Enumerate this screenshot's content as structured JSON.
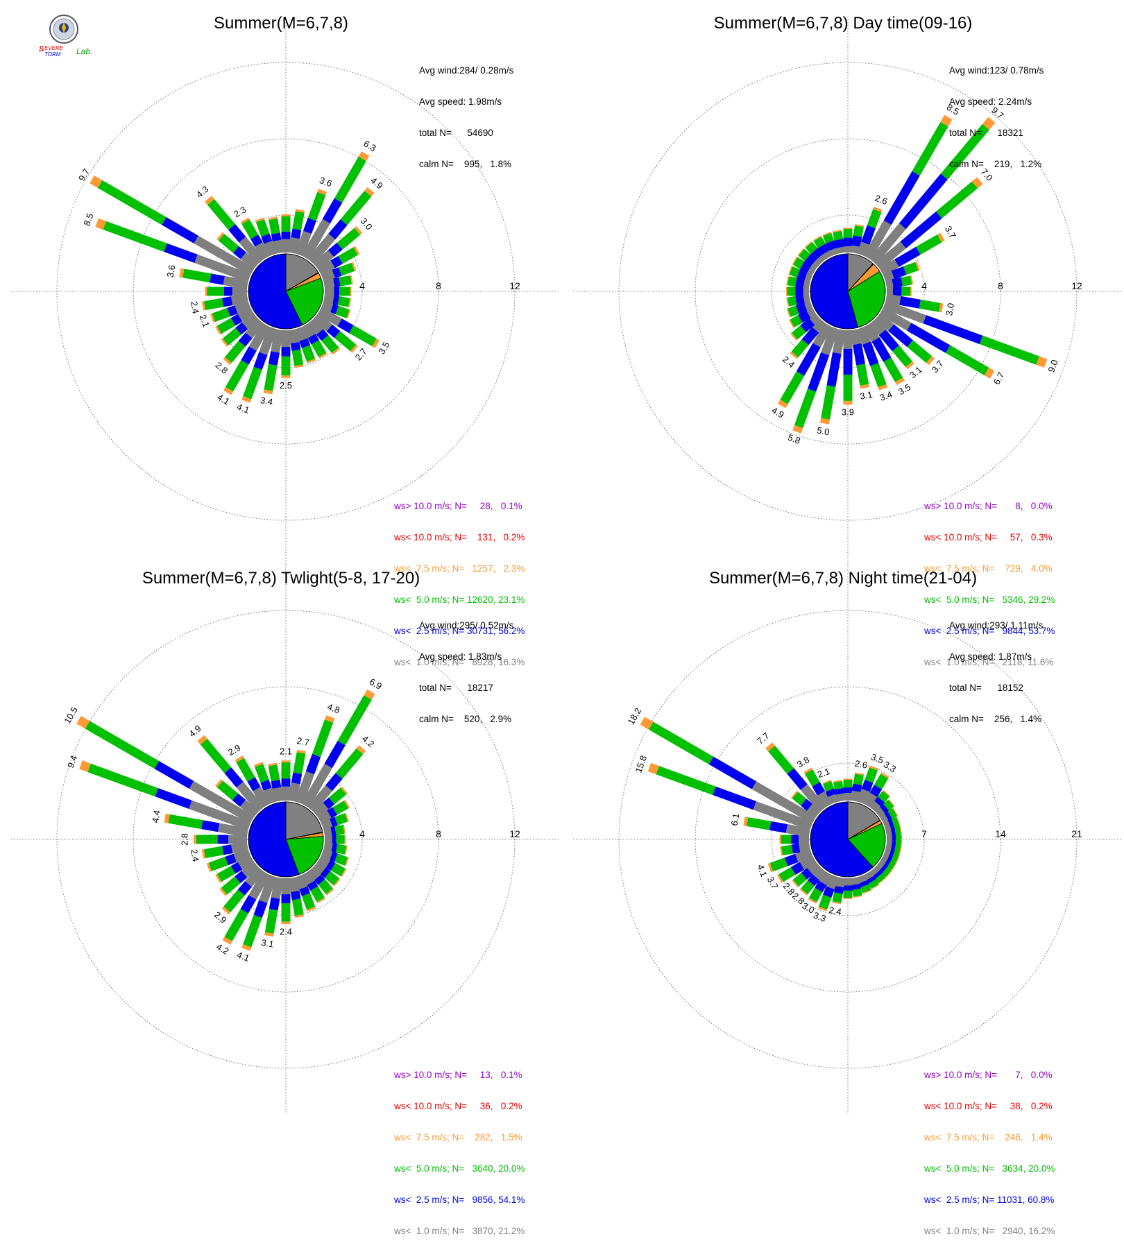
{
  "logo": {
    "text_line1": "SEVERE",
    "text_line2": "STORM",
    "text_line3": "Lab."
  },
  "colors": {
    "gray": "#808080",
    "blue": "#0000ee",
    "green": "#00c000",
    "orange": "#ff9933",
    "red": "#ee0000",
    "purple": "#9900cc"
  },
  "chart_data": [
    {
      "type": "windrose",
      "title": "Summer(M=6,7,8)",
      "ring_labels": [
        "4",
        "8",
        "12"
      ],
      "rmax": 12,
      "stats": {
        "avg_wind": "Avg wind:284/ 0.28m/s",
        "avg_speed": "Avg speed: 1.98m/s",
        "total": "total N=      54690",
        "calm": "calm N=    995,   1.8%"
      },
      "legend": [
        {
          "text": "ws> 10.0 m/s; N=     28,   0.1%",
          "color": "#9900cc"
        },
        {
          "text": "ws< 10.0 m/s; N=    131,   0.2%",
          "color": "#ee0000"
        },
        {
          "text": "ws<  7.5 m/s; N=   1257,   2.3%",
          "color": "#ff9933"
        },
        {
          "text": "ws<  5.0 m/s; N= 12620, 23.1%",
          "color": "#00c000"
        },
        {
          "text": "ws<  2.5 m/s; N= 30731, 56.2%",
          "color": "#0000ee"
        },
        {
          "text": "ws<  1.0 m/s; N=   8928, 16.3%",
          "color": "#808080"
        }
      ],
      "direction_labels": [
        {
          "dir": 20,
          "label": "3.6"
        },
        {
          "dir": 30,
          "label": "6.3"
        },
        {
          "dir": 40,
          "label": "4.9"
        },
        {
          "dir": 50,
          "label": "3.0"
        },
        {
          "dir": 120,
          "label": "3.5"
        },
        {
          "dir": 130,
          "label": "2.7"
        },
        {
          "dir": 180,
          "label": "2.5"
        },
        {
          "dir": 190,
          "label": "3.4"
        },
        {
          "dir": 200,
          "label": "4.1"
        },
        {
          "dir": 210,
          "label": "4.1"
        },
        {
          "dir": 220,
          "label": "2.8"
        },
        {
          "dir": 250,
          "label": "2.1"
        },
        {
          "dir": 260,
          "label": "2.4"
        },
        {
          "dir": 280,
          "label": "3.6"
        },
        {
          "dir": 290,
          "label": "8.5"
        },
        {
          "dir": 300,
          "label": "9.7"
        },
        {
          "dir": 320,
          "label": "4.3"
        },
        {
          "dir": 330,
          "label": "2.3"
        }
      ],
      "totals": [
        2.0,
        2.3,
        3.6,
        6.3,
        4.9,
        3.0,
        2.3,
        1.8,
        1.5,
        1.4,
        1.4,
        1.5,
        3.5,
        2.7,
        2.1,
        1.9,
        1.9,
        2.0,
        2.5,
        3.4,
        4.1,
        4.1,
        2.8,
        2.2,
        2.1,
        2.1,
        2.4,
        2.2,
        3.6,
        8.5,
        9.7,
        2.5,
        4.3,
        2.3,
        2.0,
        1.9
      ],
      "fractions": [
        0.35,
        0.55,
        0.95,
        1.0,
        1.0,
        1.0
      ],
      "pie": [
        {
          "label": "ws< 1.0 m/s",
          "value": 16.3,
          "color": "#808080"
        },
        {
          "label": "ws> 10.0 m/s",
          "value": 0.1,
          "color": "#9900cc"
        },
        {
          "label": "ws< 10.0 m/s",
          "value": 0.2,
          "color": "#ee0000"
        },
        {
          "label": "ws< 7.5 m/s",
          "value": 2.3,
          "color": "#ff9933"
        },
        {
          "label": "ws< 5.0 m/s",
          "value": 23.1,
          "color": "#00c000"
        },
        {
          "label": "ws< 2.5 m/s",
          "value": 56.2,
          "color": "#0000ee"
        }
      ]
    },
    {
      "type": "windrose",
      "title": "Summer(M=6,7,8) Day time(09-16)",
      "ring_labels": [
        "4",
        "8",
        "12"
      ],
      "rmax": 12,
      "stats": {
        "avg_wind": "Avg wind:123/ 0.78m/s",
        "avg_speed": "Avg speed: 2.24m/s",
        "total": "total N=      18321",
        "calm": "calm N=    219,   1.2%"
      },
      "legend": [
        {
          "text": "ws> 10.0 m/s; N=       8,   0.0%",
          "color": "#9900cc"
        },
        {
          "text": "ws< 10.0 m/s; N=     57,   0.3%",
          "color": "#ee0000"
        },
        {
          "text": "ws<  7.5 m/s; N=    729,   4.0%",
          "color": "#ff9933"
        },
        {
          "text": "ws<  5.0 m/s; N=   5346, 29.2%",
          "color": "#00c000"
        },
        {
          "text": "ws<  2.5 m/s; N=   9844, 53.7%",
          "color": "#0000ee"
        },
        {
          "text": "ws<  1.0 m/s; N=   2118, 11.6%",
          "color": "#808080"
        }
      ],
      "direction_labels": [
        {
          "dir": 20,
          "label": "2.6"
        },
        {
          "dir": 30,
          "label": "8.5"
        },
        {
          "dir": 40,
          "label": "9.7"
        },
        {
          "dir": 50,
          "label": "7.0"
        },
        {
          "dir": 60,
          "label": "3.7"
        },
        {
          "dir": 100,
          "label": "3.0"
        },
        {
          "dir": 110,
          "label": "9.0"
        },
        {
          "dir": 120,
          "label": "6.7"
        },
        {
          "dir": 130,
          "label": "3.7"
        },
        {
          "dir": 140,
          "label": "3.1"
        },
        {
          "dir": 150,
          "label": "3.5"
        },
        {
          "dir": 160,
          "label": "3.4"
        },
        {
          "dir": 170,
          "label": "3.1"
        },
        {
          "dir": 180,
          "label": "3.9"
        },
        {
          "dir": 190,
          "label": "5.0"
        },
        {
          "dir": 200,
          "label": "5.8"
        },
        {
          "dir": 210,
          "label": "4.9"
        },
        {
          "dir": 220,
          "label": "2.4"
        }
      ],
      "totals": [
        1.3,
        1.5,
        2.6,
        8.5,
        9.7,
        7.0,
        3.7,
        1.9,
        1.4,
        1.3,
        3.0,
        9.0,
        6.7,
        3.7,
        3.1,
        3.5,
        3.4,
        3.1,
        3.9,
        5.0,
        5.8,
        4.9,
        2.4,
        1.7,
        1.4,
        1.3,
        1.2,
        1.2,
        1.2,
        1.2,
        1.2,
        1.2,
        1.2,
        1.2,
        1.2,
        1.2
      ],
      "fractions": [
        0.25,
        0.6,
        0.95,
        1.0,
        1.0,
        1.0
      ],
      "pie": [
        {
          "label": "ws< 1.0 m/s",
          "value": 11.6,
          "color": "#808080"
        },
        {
          "label": "ws> 10.0 m/s",
          "value": 0.0,
          "color": "#9900cc"
        },
        {
          "label": "ws< 10.0 m/s",
          "value": 0.3,
          "color": "#ee0000"
        },
        {
          "label": "ws< 7.5 m/s",
          "value": 4.0,
          "color": "#ff9933"
        },
        {
          "label": "ws< 5.0 m/s",
          "value": 29.2,
          "color": "#00c000"
        },
        {
          "label": "ws< 2.5 m/s",
          "value": 53.7,
          "color": "#0000ee"
        }
      ]
    },
    {
      "type": "windrose",
      "title": "Summer(M=6,7,8) Twlight(5-8, 17-20)",
      "ring_labels": [
        "4",
        "8",
        "12"
      ],
      "rmax": 12,
      "stats": {
        "avg_wind": "Avg wind:295/ 0.52m/s",
        "avg_speed": "Avg speed: 1.83m/s",
        "total": "total N=      18217",
        "calm": "calm N=    520,   2.9%"
      },
      "legend": [
        {
          "text": "ws> 10.0 m/s; N=     13,   0.1%",
          "color": "#9900cc"
        },
        {
          "text": "ws< 10.0 m/s; N=     36,   0.2%",
          "color": "#ee0000"
        },
        {
          "text": "ws<  7.5 m/s; N=    282,   1.5%",
          "color": "#ff9933"
        },
        {
          "text": "ws<  5.0 m/s; N=   3640, 20.0%",
          "color": "#00c000"
        },
        {
          "text": "ws<  2.5 m/s; N=   9856, 54.1%",
          "color": "#0000ee"
        },
        {
          "text": "ws<  1.0 m/s; N=   3870, 21.2%",
          "color": "#808080"
        }
      ],
      "direction_labels": [
        {
          "dir": 0,
          "label": "2.1"
        },
        {
          "dir": 10,
          "label": "2.7"
        },
        {
          "dir": 20,
          "label": "4.8"
        },
        {
          "dir": 30,
          "label": "6.9"
        },
        {
          "dir": 40,
          "label": "4.2"
        },
        {
          "dir": 180,
          "label": "2.4"
        },
        {
          "dir": 190,
          "label": "3.1"
        },
        {
          "dir": 200,
          "label": "4.1"
        },
        {
          "dir": 210,
          "label": "4.2"
        },
        {
          "dir": 220,
          "label": "2.9"
        },
        {
          "dir": 260,
          "label": "2.4"
        },
        {
          "dir": 270,
          "label": "2.8"
        },
        {
          "dir": 280,
          "label": "4.4"
        },
        {
          "dir": 290,
          "label": "9.4"
        },
        {
          "dir": 300,
          "label": "10.5"
        },
        {
          "dir": 320,
          "label": "4.9"
        },
        {
          "dir": 330,
          "label": "2.9"
        }
      ],
      "totals": [
        2.1,
        2.7,
        4.8,
        6.9,
        4.2,
        2.0,
        1.7,
        1.4,
        1.1,
        1.1,
        1.2,
        1.4,
        1.5,
        1.5,
        1.6,
        1.7,
        1.9,
        2.1,
        2.4,
        3.1,
        4.1,
        4.2,
        2.9,
        2.3,
        2.1,
        2.3,
        2.4,
        2.8,
        4.4,
        9.4,
        10.5,
        2.6,
        4.9,
        2.9,
        2.2,
        2.0
      ],
      "fractions": [
        0.35,
        0.55,
        0.95,
        1.0,
        1.0,
        1.0
      ],
      "pie": [
        {
          "label": "ws< 1.0 m/s",
          "value": 21.2,
          "color": "#808080"
        },
        {
          "label": "ws> 10.0 m/s",
          "value": 0.1,
          "color": "#9900cc"
        },
        {
          "label": "ws< 10.0 m/s",
          "value": 0.2,
          "color": "#ee0000"
        },
        {
          "label": "ws< 7.5 m/s",
          "value": 1.5,
          "color": "#ff9933"
        },
        {
          "label": "ws< 5.0 m/s",
          "value": 20.0,
          "color": "#00c000"
        },
        {
          "label": "ws< 2.5 m/s",
          "value": 54.1,
          "color": "#0000ee"
        }
      ]
    },
    {
      "type": "windrose",
      "title": "Summer(M=6,7,8) Night time(21-04)",
      "ring_labels": [
        "7",
        "14",
        "21"
      ],
      "rmax": 21,
      "stats": {
        "avg_wind": "Avg wind:293/ 1.11m/s",
        "avg_speed": "Avg speed: 1.87m/s",
        "total": "total N=      18152",
        "calm": "calm N=    256,   1.4%"
      },
      "legend": [
        {
          "text": "ws> 10.0 m/s; N=       7,   0.0%",
          "color": "#9900cc"
        },
        {
          "text": "ws< 10.0 m/s; N=     38,   0.2%",
          "color": "#ee0000"
        },
        {
          "text": "ws<  7.5 m/s; N=    246,   1.4%",
          "color": "#ff9933"
        },
        {
          "text": "ws<  5.0 m/s; N=   3634, 20.0%",
          "color": "#00c000"
        },
        {
          "text": "ws<  2.5 m/s; N= 11031, 60.8%",
          "color": "#0000ee"
        },
        {
          "text": "ws<  1.0 m/s; N=   2940, 16.2%",
          "color": "#808080"
        }
      ],
      "direction_labels": [
        {
          "dir": 10,
          "label": "2.6"
        },
        {
          "dir": 20,
          "label": "3.5"
        },
        {
          "dir": 30,
          "label": "3.3"
        },
        {
          "dir": 190,
          "label": "2.4"
        },
        {
          "dir": 200,
          "label": "3.3"
        },
        {
          "dir": 210,
          "label": "3.0"
        },
        {
          "dir": 220,
          "label": "2.8"
        },
        {
          "dir": 230,
          "label": "2.8"
        },
        {
          "dir": 240,
          "label": "3.7"
        },
        {
          "dir": 250,
          "label": "4.1"
        },
        {
          "dir": 280,
          "label": "6.1"
        },
        {
          "dir": 290,
          "label": "15.8"
        },
        {
          "dir": 300,
          "label": "18.2"
        },
        {
          "dir": 320,
          "label": "7.7"
        },
        {
          "dir": 330,
          "label": "3.8"
        },
        {
          "dir": 340,
          "label": "2.1"
        }
      ],
      "totals": [
        2.0,
        2.6,
        3.5,
        3.3,
        2.0,
        1.7,
        1.5,
        1.4,
        1.4,
        1.4,
        1.4,
        1.4,
        1.4,
        1.4,
        1.4,
        1.5,
        1.6,
        1.8,
        1.9,
        2.4,
        3.3,
        3.0,
        2.8,
        2.8,
        3.7,
        4.1,
        2.7,
        2.7,
        6.1,
        15.8,
        18.2,
        2.9,
        7.7,
        3.8,
        2.1,
        1.9
      ],
      "fractions": [
        0.35,
        0.6,
        0.95,
        1.0,
        1.0,
        1.0
      ],
      "pie": [
        {
          "label": "ws< 1.0 m/s",
          "value": 16.2,
          "color": "#808080"
        },
        {
          "label": "ws> 10.0 m/s",
          "value": 0.0,
          "color": "#9900cc"
        },
        {
          "label": "ws< 10.0 m/s",
          "value": 0.2,
          "color": "#ee0000"
        },
        {
          "label": "ws< 7.5 m/s",
          "value": 1.4,
          "color": "#ff9933"
        },
        {
          "label": "ws< 5.0 m/s",
          "value": 20.0,
          "color": "#00c000"
        },
        {
          "label": "ws< 2.5 m/s",
          "value": 60.8,
          "color": "#0000ee"
        }
      ]
    }
  ]
}
